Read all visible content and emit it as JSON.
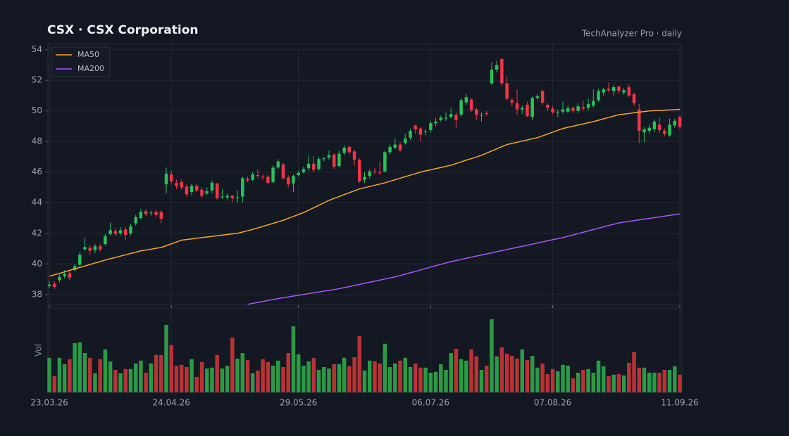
{
  "chart_data": {
    "type": "candlestick",
    "title": "CSX  ·  CSX Corporation",
    "source": "TechAnalyzer Pro · daily",
    "x": [
      "23.03.26",
      "24.03.26",
      "25.03.26",
      "26.03.26",
      "27.03.26",
      "30.03.26",
      "31.03.26",
      "01.04.26",
      "02.04.26",
      "03.04.26",
      "06.04.26",
      "07.04.26",
      "08.04.26",
      "09.04.26",
      "10.04.26",
      "13.04.26",
      "14.04.26",
      "15.04.26",
      "16.04.26",
      "17.04.26",
      "20.04.26",
      "21.04.26",
      "22.04.26",
      "23.04.26",
      "24.04.26",
      "27.04.26",
      "28.04.26",
      "29.04.26",
      "30.04.26",
      "01.05.26",
      "04.05.26",
      "05.05.26",
      "06.05.26",
      "07.05.26",
      "08.05.26",
      "11.05.26",
      "12.05.26",
      "13.05.26",
      "14.05.26",
      "15.05.26",
      "18.05.26",
      "19.05.26",
      "20.05.26",
      "21.05.26",
      "22.05.26",
      "25.05.26",
      "26.05.26",
      "27.05.26",
      "28.05.26",
      "29.05.26",
      "01.06.26",
      "02.06.26",
      "03.06.26",
      "04.06.26",
      "05.06.26",
      "08.06.26",
      "09.06.26",
      "10.06.26",
      "11.06.26",
      "12.06.26",
      "15.06.26",
      "16.06.26",
      "17.06.26",
      "18.06.26",
      "19.06.26",
      "22.06.26",
      "23.06.26",
      "24.06.26",
      "25.06.26",
      "26.06.26",
      "29.06.26",
      "30.06.26",
      "01.07.26",
      "02.07.26",
      "03.07.26",
      "06.07.26",
      "07.07.26",
      "08.07.26",
      "09.07.26",
      "10.07.26",
      "13.07.26",
      "14.07.26",
      "15.07.26",
      "16.07.26",
      "17.07.26",
      "20.07.26",
      "21.07.26",
      "22.07.26",
      "23.07.26",
      "24.07.26",
      "27.07.26",
      "28.07.26",
      "29.07.26",
      "30.07.26",
      "31.07.26",
      "03.08.26",
      "04.08.26",
      "05.08.26",
      "06.08.26",
      "07.08.26",
      "10.08.26",
      "11.08.26",
      "12.08.26",
      "13.08.26",
      "14.08.26",
      "17.08.26",
      "18.08.26",
      "19.08.26",
      "20.08.26",
      "21.08.26",
      "24.08.26",
      "25.08.26",
      "26.08.26",
      "27.08.26",
      "28.08.26",
      "31.08.26",
      "01.09.26",
      "02.09.26",
      "03.09.26",
      "04.09.26",
      "07.09.26",
      "08.09.26",
      "09.09.26",
      "10.09.26",
      "11.09.26"
    ],
    "open": [
      38.55,
      38.7,
      38.95,
      39.2,
      39.4,
      39.6,
      39.95,
      40.95,
      41.05,
      40.9,
      41.15,
      41.3,
      41.95,
      42.15,
      42.0,
      42.25,
      42.0,
      42.65,
      43.0,
      43.45,
      43.3,
      43.4,
      43.4,
      45.2,
      45.85,
      45.3,
      45.35,
      45.05,
      44.7,
      45.1,
      44.85,
      44.6,
      44.8,
      45.25,
      44.35,
      44.35,
      44.45,
      44.3,
      44.4,
      45.55,
      45.5,
      45.8,
      45.7,
      45.7,
      45.35,
      46.3,
      46.5,
      45.65,
      45.25,
      45.8,
      46.0,
      46.25,
      46.55,
      46.2,
      46.85,
      46.95,
      47.15,
      46.4,
      47.25,
      47.65,
      47.35,
      46.8,
      45.5,
      45.75,
      46.05,
      46.0,
      46.05,
      47.3,
      47.6,
      47.8,
      47.9,
      48.25,
      49.05,
      48.85,
      48.6,
      48.75,
      49.2,
      49.4,
      49.5,
      49.6,
      49.75,
      49.75,
      50.55,
      50.75,
      50.1,
      49.7,
      49.85,
      51.8,
      52.7,
      53.4,
      51.8,
      50.7,
      50.5,
      50.1,
      50.4,
      49.6,
      50.85,
      51.3,
      50.4,
      50.15,
      49.85,
      49.95,
      49.95,
      50.2,
      50.0,
      50.25,
      50.2,
      50.35,
      50.7,
      51.2,
      51.45,
      51.3,
      51.6,
      51.2,
      51.55,
      51.1,
      50.1,
      48.6,
      48.7,
      48.8,
      49.1,
      48.7,
      48.4,
      49.05,
      49.6
    ],
    "high": [
      38.9,
      38.85,
      39.3,
      39.6,
      39.5,
      40.0,
      40.8,
      41.7,
      41.2,
      41.3,
      41.3,
      41.95,
      42.7,
      42.3,
      42.4,
      42.4,
      42.6,
      43.2,
      43.6,
      43.6,
      43.5,
      43.55,
      43.5,
      46.3,
      46.1,
      45.5,
      45.5,
      45.2,
      45.25,
      45.25,
      45.0,
      45.0,
      45.45,
      45.3,
      44.9,
      44.6,
      44.5,
      44.8,
      45.7,
      45.7,
      46.0,
      46.2,
      45.85,
      45.8,
      46.45,
      46.85,
      46.6,
      45.8,
      45.85,
      46.1,
      46.35,
      47.1,
      47.05,
      47.0,
      47.0,
      47.4,
      47.25,
      47.4,
      47.75,
      47.7,
      47.45,
      46.9,
      46.0,
      46.2,
      46.3,
      46.7,
      47.4,
      47.8,
      48.2,
      47.95,
      48.5,
      48.85,
      49.1,
      48.95,
      48.8,
      49.35,
      49.55,
      49.7,
      49.9,
      50.2,
      49.9,
      50.85,
      51.1,
      50.85,
      50.2,
      49.9,
      50.0,
      53.2,
      53.3,
      53.45,
      52.3,
      50.85,
      51.4,
      50.35,
      50.6,
      50.95,
      51.1,
      51.4,
      50.5,
      50.3,
      50.1,
      50.6,
      50.35,
      50.3,
      50.5,
      50.65,
      50.8,
      51.4,
      51.45,
      51.5,
      51.85,
      51.7,
      51.65,
      51.5,
      51.75,
      51.2,
      50.45,
      48.95,
      49.1,
      49.45,
      49.6,
      48.85,
      49.5,
      49.5,
      49.7
    ],
    "low": [
      38.4,
      38.35,
      38.8,
      39.05,
      38.95,
      39.5,
      39.8,
      40.85,
      40.6,
      40.7,
      40.8,
      41.2,
      41.85,
      41.8,
      41.85,
      41.55,
      41.85,
      42.5,
      42.9,
      43.1,
      43.15,
      43.05,
      42.65,
      44.6,
      45.25,
      44.9,
      44.85,
      44.4,
      44.5,
      44.7,
      44.3,
      44.5,
      44.6,
      44.2,
      44.25,
      44.2,
      44.05,
      44.0,
      44.0,
      45.35,
      45.4,
      45.6,
      45.5,
      45.2,
      45.25,
      46.2,
      45.5,
      45.0,
      44.7,
      45.7,
      45.9,
      46.1,
      46.0,
      46.1,
      46.7,
      46.8,
      46.2,
      46.3,
      47.1,
      47.15,
      46.4,
      45.3,
      45.3,
      45.6,
      45.85,
      45.8,
      45.95,
      47.15,
      47.5,
      47.3,
      47.8,
      48.1,
      48.5,
      48.0,
      48.4,
      48.6,
      49.0,
      49.3,
      49.35,
      49.5,
      48.9,
      49.6,
      50.4,
      49.9,
      49.4,
      49.3,
      49.65,
      51.7,
      52.5,
      51.6,
      50.7,
      50.3,
      49.75,
      49.8,
      49.6,
      49.4,
      50.7,
      50.4,
      50.0,
      49.8,
      49.6,
      49.8,
      49.85,
      49.9,
      49.85,
      50.0,
      50.05,
      50.2,
      50.6,
      51.0,
      51.2,
      51.0,
      51.1,
      51.05,
      50.9,
      50.3,
      47.9,
      47.95,
      48.5,
      48.6,
      48.55,
      48.35,
      48.3,
      48.9,
      48.8
    ],
    "close": [
      38.65,
      38.5,
      39.15,
      39.35,
      39.1,
      39.85,
      40.6,
      41.1,
      40.85,
      41.15,
      40.95,
      41.8,
      42.2,
      41.95,
      42.2,
      41.9,
      42.45,
      43.05,
      43.4,
      43.25,
      43.35,
      43.2,
      42.95,
      45.9,
      45.4,
      45.1,
      45.0,
      44.55,
      45.1,
      44.8,
      44.45,
      44.75,
      45.3,
      44.3,
      44.4,
      44.45,
      44.3,
      44.35,
      45.6,
      45.45,
      45.85,
      45.75,
      45.65,
      45.3,
      46.3,
      46.7,
      45.6,
      45.2,
      45.75,
      45.95,
      46.2,
      46.55,
      46.15,
      46.85,
      46.9,
      47.1,
      46.35,
      47.2,
      47.6,
      47.3,
      46.8,
      45.4,
      45.7,
      46.05,
      46.0,
      45.95,
      47.3,
      47.65,
      47.8,
      47.45,
      48.2,
      48.7,
      48.8,
      48.45,
      48.65,
      49.2,
      49.3,
      49.55,
      49.55,
      49.8,
      49.4,
      50.7,
      50.9,
      50.05,
      49.75,
      49.75,
      49.8,
      52.7,
      53.0,
      51.8,
      50.8,
      50.55,
      50.1,
      50.2,
      49.65,
      50.85,
      50.95,
      50.55,
      50.2,
      49.9,
      49.9,
      50.1,
      50.2,
      50.0,
      50.3,
      50.15,
      50.45,
      50.65,
      51.3,
      51.4,
      51.35,
      51.55,
      51.3,
      51.35,
      51.0,
      50.5,
      48.7,
      48.8,
      48.9,
      49.3,
      48.75,
      48.5,
      49.1,
      49.35,
      48.95
    ],
    "ylim": [
      37.3,
      54.4
    ],
    "yticks": [
      38,
      40,
      42,
      44,
      46,
      48,
      50,
      52,
      54
    ],
    "xticks": [
      "23.03.26",
      "24.04.26",
      "29.05.26",
      "06.07.26",
      "07.08.26",
      "11.09.26"
    ],
    "grid": true,
    "up_color": "#26c35a",
    "down_color": "#f23645",
    "legend": "upper left",
    "overlays": [
      {
        "name": "MA50",
        "color": "#f5a623",
        "values": [
          39.19,
          39.29,
          39.38,
          39.48,
          39.58,
          39.67,
          39.77,
          39.86,
          39.96,
          40.06,
          40.15,
          40.25,
          40.34,
          40.42,
          40.51,
          40.59,
          40.68,
          40.76,
          40.85,
          40.91,
          40.96,
          41.02,
          41.07,
          41.19,
          41.31,
          41.43,
          41.55,
          41.59,
          41.63,
          41.68,
          41.72,
          41.76,
          41.8,
          41.84,
          41.88,
          41.92,
          41.96,
          42.0,
          42.08,
          42.17,
          42.25,
          42.35,
          42.45,
          42.55,
          42.65,
          42.75,
          42.85,
          42.98,
          43.1,
          43.23,
          43.35,
          43.51,
          43.67,
          43.83,
          43.99,
          44.15,
          44.28,
          44.4,
          44.53,
          44.65,
          44.78,
          44.9,
          44.98,
          45.06,
          45.14,
          45.22,
          45.3,
          45.4,
          45.5,
          45.6,
          45.7,
          45.8,
          45.9,
          46.0,
          46.08,
          46.15,
          46.23,
          46.3,
          46.38,
          46.45,
          46.56,
          46.67,
          46.78,
          46.88,
          46.99,
          47.1,
          47.24,
          47.38,
          47.52,
          47.66,
          47.8,
          47.88,
          47.95,
          48.03,
          48.1,
          48.18,
          48.25,
          48.37,
          48.49,
          48.61,
          48.73,
          48.85,
          48.93,
          49.0,
          49.08,
          49.15,
          49.23,
          49.3,
          49.39,
          49.48,
          49.57,
          49.66,
          49.75,
          49.79,
          49.83,
          49.88,
          49.92,
          49.96,
          50.0,
          50.02,
          50.03,
          50.05,
          50.07,
          50.08,
          50.1
        ]
      },
      {
        "name": "MA200",
        "color": "#a855f7",
        "values": [
          null,
          null,
          null,
          null,
          null,
          null,
          null,
          null,
          null,
          null,
          null,
          null,
          null,
          null,
          null,
          null,
          null,
          null,
          null,
          null,
          null,
          null,
          null,
          null,
          null,
          null,
          null,
          null,
          null,
          null,
          null,
          null,
          null,
          null,
          null,
          null,
          null,
          null,
          null,
          37.36,
          37.42,
          37.48,
          37.54,
          37.61,
          37.67,
          37.73,
          37.79,
          37.84,
          37.9,
          37.95,
          38.0,
          38.06,
          38.11,
          38.16,
          38.22,
          38.27,
          38.32,
          38.38,
          38.45,
          38.52,
          38.59,
          38.66,
          38.73,
          38.8,
          38.87,
          38.94,
          39.01,
          39.08,
          39.15,
          39.24,
          39.33,
          39.42,
          39.51,
          39.6,
          39.7,
          39.79,
          39.88,
          39.97,
          40.06,
          40.15,
          40.22,
          40.29,
          40.37,
          40.44,
          40.51,
          40.58,
          40.65,
          40.72,
          40.8,
          40.87,
          40.94,
          41.01,
          41.08,
          41.15,
          41.22,
          41.29,
          41.37,
          41.44,
          41.51,
          41.58,
          41.65,
          41.72,
          41.81,
          41.89,
          41.98,
          42.07,
          42.16,
          42.24,
          42.33,
          42.42,
          42.51,
          42.59,
          42.68,
          42.73,
          42.78,
          42.83,
          42.88,
          42.93,
          42.97,
          43.02,
          43.07,
          43.12,
          43.17,
          43.22,
          43.27
        ]
      }
    ],
    "volume": {
      "label": "Vol",
      "ylim": [
        0,
        30
      ],
      "up_color": "#2b9a45",
      "down_color": "#b93236",
      "values": [
        12.3,
        5.8,
        12.3,
        10.0,
        11.8,
        17.5,
        17.8,
        14.0,
        12.3,
        6.8,
        11.8,
        15.3,
        11.0,
        8.0,
        6.8,
        8.3,
        8.3,
        10.3,
        11.3,
        7.0,
        10.3,
        13.3,
        13.3,
        24.0,
        16.8,
        9.5,
        9.8,
        9.0,
        11.8,
        5.5,
        10.8,
        8.5,
        8.8,
        13.3,
        8.5,
        9.5,
        19.5,
        12.0,
        14.0,
        11.5,
        6.8,
        7.8,
        11.8,
        10.8,
        9.5,
        11.3,
        9.0,
        14.0,
        23.5,
        13.5,
        9.5,
        11.0,
        12.3,
        8.0,
        9.0,
        8.5,
        10.0,
        10.0,
        12.3,
        9.3,
        12.5,
        20.0,
        7.8,
        11.3,
        11.0,
        10.3,
        17.3,
        9.0,
        10.3,
        11.3,
        12.3,
        9.0,
        10.3,
        8.8,
        8.8,
        7.0,
        7.3,
        10.0,
        8.0,
        14.0,
        15.5,
        11.8,
        11.3,
        15.3,
        12.8,
        8.0,
        9.5,
        26.0,
        12.8,
        16.0,
        13.8,
        13.0,
        12.0,
        15.3,
        11.5,
        13.0,
        8.8,
        10.3,
        6.5,
        8.3,
        7.5,
        9.8,
        9.5,
        5.0,
        7.0,
        8.0,
        8.3,
        7.0,
        11.3,
        9.3,
        5.8,
        6.3,
        6.5,
        6.0,
        10.5,
        14.3,
        8.8,
        8.8,
        7.0,
        7.0,
        7.0,
        8.0,
        8.0,
        9.3,
        6.3
      ]
    }
  }
}
